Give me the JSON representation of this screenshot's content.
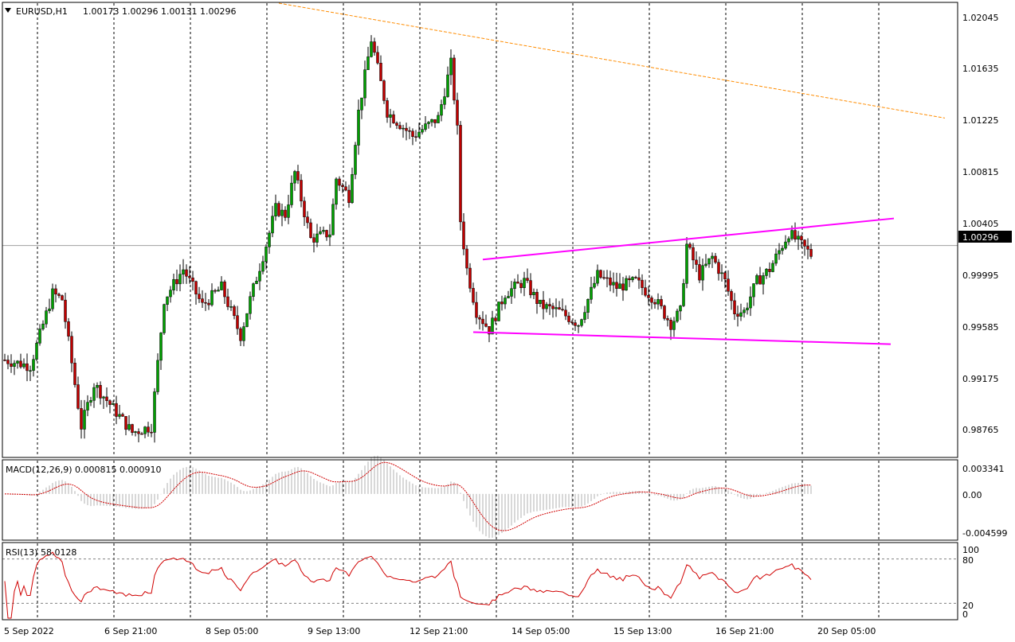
{
  "header": {
    "symbol": "EURUSD,H1",
    "ohlc": "1.00173 1.00296 1.00131 1.00296"
  },
  "price_axis": {
    "ticks": [
      "1.02045",
      "1.01635",
      "1.01225",
      "1.00815",
      "1.00405",
      "0.99995",
      "0.99585",
      "0.99175",
      "0.98765"
    ],
    "current": "1.00296"
  },
  "time_axis": [
    "5 Sep 2022",
    "6 Sep 21:00",
    "8 Sep 05:00",
    "9 Sep 13:00",
    "12 Sep 21:00",
    "14 Sep 05:00",
    "15 Sep 13:00",
    "16 Sep 21:00",
    "20 Sep 05:00"
  ],
  "macd": {
    "label": "MACD(12,26,9) 0.000815 0.000910",
    "ticks": [
      "0.003341",
      "0.00",
      "-0.004599"
    ]
  },
  "rsi": {
    "label": "RSI(13) 58.0128",
    "ticks": [
      "100",
      "80",
      "20",
      "0"
    ]
  },
  "colors": {
    "candle_up": "#00a000",
    "candle_down": "#c00000",
    "wick": "#000000",
    "trendline_top": "#ff00ff",
    "trendline_bottom": "#ff00ff",
    "resistance": "#ff8c00",
    "signal": "#d00000",
    "rsi_line": "#d00000",
    "histogram": "#b0b0b0",
    "grid": "#000000"
  },
  "chart_data": {
    "type": "candlestick",
    "symbol": "EURUSD",
    "timeframe": "H1",
    "x_labels": [
      "5 Sep 2022",
      "6 Sep 21:00",
      "8 Sep 05:00",
      "9 Sep 13:00",
      "12 Sep 21:00",
      "14 Sep 05:00",
      "15 Sep 13:00",
      "16 Sep 21:00",
      "20 Sep 05:00"
    ],
    "ylim": [
      0.9855,
      1.023
    ],
    "price_path": [
      [
        0,
        0.9935
      ],
      [
        8,
        0.993
      ],
      [
        15,
        0.999
      ],
      [
        18,
        0.9985
      ],
      [
        24,
        0.988
      ],
      [
        28,
        0.9915
      ],
      [
        34,
        0.9895
      ],
      [
        40,
        0.9875
      ],
      [
        46,
        0.988
      ],
      [
        50,
        0.9985
      ],
      [
        56,
        1.001
      ],
      [
        62,
        0.998
      ],
      [
        68,
        0.9995
      ],
      [
        74,
        0.9955
      ],
      [
        77,
        0.9985
      ],
      [
        82,
        1.003
      ],
      [
        85,
        1.006
      ],
      [
        88,
        1.0055
      ],
      [
        91,
        1.009
      ],
      [
        96,
        1.0035
      ],
      [
        102,
        1.004
      ],
      [
        104,
        1.0085
      ],
      [
        108,
        1.007
      ],
      [
        111,
        1.014
      ],
      [
        115,
        1.02
      ],
      [
        120,
        1.014
      ],
      [
        128,
        1.012
      ],
      [
        136,
        1.0135
      ],
      [
        140,
        1.018
      ],
      [
        142,
        1.0125
      ],
      [
        143,
        1.005
      ],
      [
        145,
        1.001
      ],
      [
        148,
        0.9975
      ],
      [
        152,
        0.996
      ],
      [
        157,
        0.999
      ],
      [
        163,
        1.0
      ],
      [
        168,
        0.998
      ],
      [
        174,
        0.9975
      ],
      [
        180,
        0.9965
      ],
      [
        186,
        1.0005
      ],
      [
        192,
        0.9995
      ],
      [
        198,
        1.0
      ],
      [
        204,
        0.9985
      ],
      [
        209,
        0.9965
      ],
      [
        212,
        0.9975
      ],
      [
        214,
        1.003
      ],
      [
        218,
        1.0005
      ],
      [
        222,
        1.002
      ],
      [
        226,
        1.0
      ],
      [
        229,
        0.9975
      ],
      [
        232,
        0.9975
      ],
      [
        236,
        1.0
      ],
      [
        240,
        1.001
      ],
      [
        246,
        1.004
      ],
      [
        250,
        1.003
      ],
      [
        253,
        1.0022
      ]
    ],
    "lines": [
      {
        "name": "upper-trendline",
        "from": [
          1.0018,
          150
        ],
        "to": [
          1.0052,
          279
        ]
      },
      {
        "name": "lower-trendline",
        "from": [
          0.9958,
          147
        ],
        "to": [
          0.9948,
          278
        ]
      },
      {
        "name": "resistance-line",
        "from": [
          1.023,
          86
        ],
        "to": [
          1.0135,
          295
        ]
      }
    ],
    "macd": {
      "label": "MACD(12,26,9)",
      "main": 0.000815,
      "signal": 0.00091,
      "ylim": [
        -0.004599,
        0.003341
      ]
    },
    "rsi": {
      "label": "RSI(13)",
      "value": 58.0128,
      "ylim": [
        0,
        100
      ],
      "levels": [
        20,
        80
      ]
    },
    "grid": true
  }
}
